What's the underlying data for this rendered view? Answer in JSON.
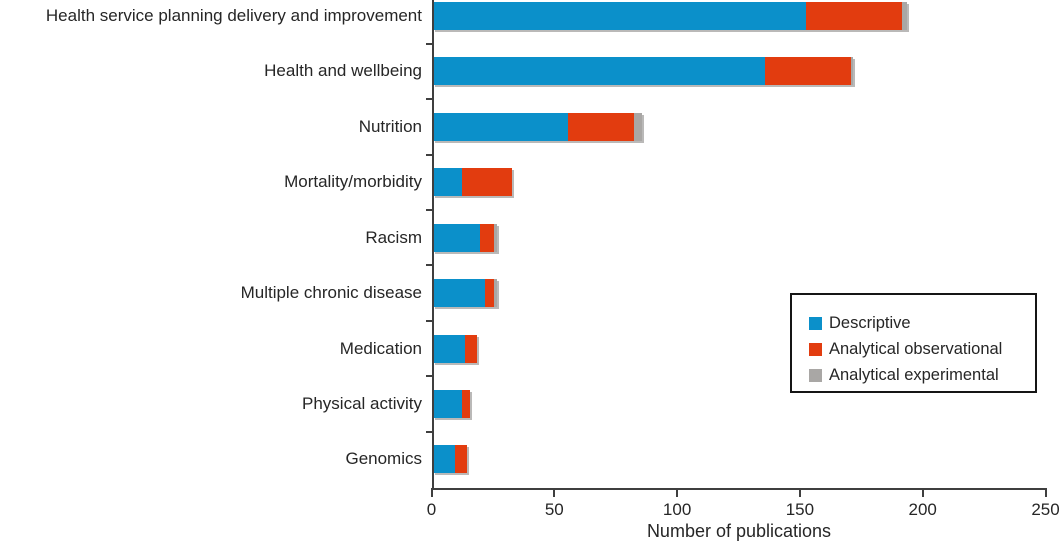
{
  "chart_data": {
    "type": "bar",
    "orientation": "horizontal",
    "stacked": true,
    "title": "",
    "xlabel": "Number of publications",
    "ylabel": "",
    "xlim": [
      0,
      250
    ],
    "xticks": [
      0,
      50,
      100,
      150,
      200,
      250
    ],
    "grid": false,
    "legend_position": "center-right",
    "categories": [
      "Health service planning delivery and improvement",
      "Health and wellbeing",
      "Nutrition",
      "Mortality/morbidity",
      "Racism",
      "Multiple chronic disease",
      "Medication",
      "Physical activity",
      "Genomics"
    ],
    "series": [
      {
        "name": "Descriptive",
        "color": "#0b90ca",
        "values": [
          152,
          135,
          55,
          12,
          19,
          21,
          13,
          12,
          9
        ]
      },
      {
        "name": "Analytical observational",
        "color": "#e23c0f",
        "values": [
          39,
          35,
          27,
          20,
          6,
          4,
          5,
          3,
          5
        ]
      },
      {
        "name": "Analytical experimental",
        "color": "#a9a7a5",
        "values": [
          2,
          1,
          3,
          0,
          1,
          1,
          0,
          0,
          0
        ]
      }
    ]
  },
  "colors": {
    "axis": "#3f3f3f",
    "text": "#262626",
    "background": "#ffffff",
    "descriptive": "#0b90ca",
    "analytical_observational": "#e23c0f",
    "analytical_experimental": "#a9a7a5"
  }
}
